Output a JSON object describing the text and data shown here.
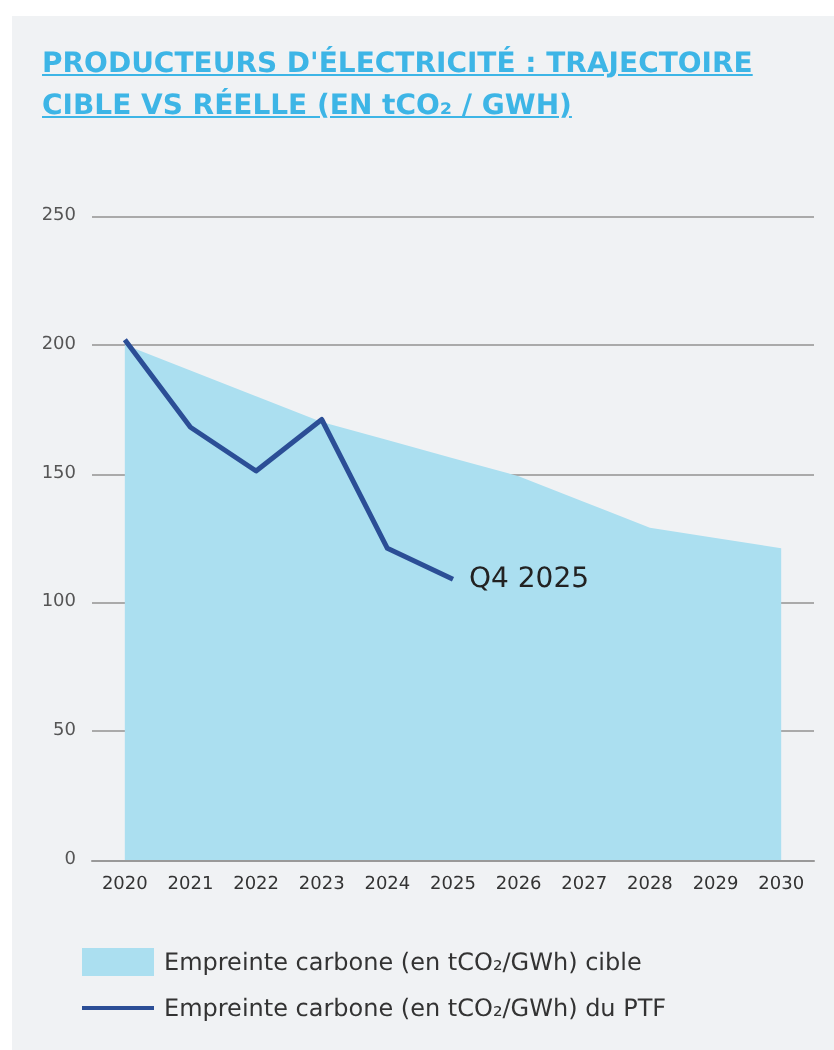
{
  "chart_data": {
    "type": "area",
    "title": "PRODUCTEURS D'ÉLECTRICITÉ : TRAJECTOIRE CIBLE VS RÉELLE (EN tCO₂ / GWH)",
    "categories": [
      "2020",
      "2021",
      "2022",
      "2023",
      "2024",
      "2025",
      "2026",
      "2027",
      "2028",
      "2029",
      "2030"
    ],
    "series": [
      {
        "name": "Empreinte carbone (en tCO₂/GWh) cible",
        "color": "#abdff0",
        "values": [
          200,
          190,
          180,
          170,
          163,
          156,
          149,
          139,
          129,
          125,
          121
        ]
      },
      {
        "name": "Empreinte carbone (en tCO₂/GWh) du PTF",
        "type": "line",
        "color": "#2b4e96",
        "values": [
          202,
          168,
          151,
          171,
          121,
          109,
          null,
          null,
          null,
          null,
          null
        ]
      }
    ],
    "ylim": [
      0,
      250
    ],
    "yticks": [
      0,
      50,
      100,
      150,
      200,
      250
    ],
    "grid": "y",
    "legend": "bottom",
    "marker": "none",
    "annotations": [
      {
        "text": "Q4 2025",
        "x": "2025",
        "y": 109
      }
    ]
  }
}
